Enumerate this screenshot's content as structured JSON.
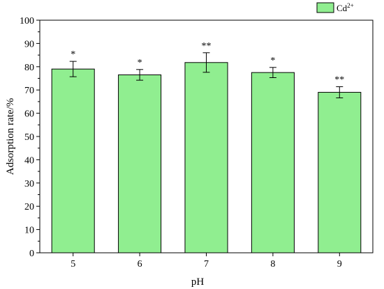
{
  "chart_data": {
    "type": "bar",
    "categories": [
      "5",
      "6",
      "7",
      "8",
      "9"
    ],
    "series": [
      {
        "name": "Cd2+",
        "values": [
          79,
          76.5,
          81.8,
          77.5,
          69
        ],
        "errors": [
          3.3,
          2.3,
          4.2,
          2.2,
          2.4
        ],
        "significance": [
          "*",
          "*",
          "**",
          "*",
          "**"
        ],
        "color": "#90ee90"
      }
    ],
    "xlabel": "pH",
    "ylabel": "Adsorption rate/%",
    "ylim": [
      0,
      100
    ],
    "yticks": [
      0,
      10,
      20,
      30,
      40,
      50,
      60,
      70,
      80,
      90,
      100
    ],
    "legend_position": "top-right",
    "legend": {
      "base": "Cd",
      "sup": "2+"
    },
    "grid": false
  }
}
